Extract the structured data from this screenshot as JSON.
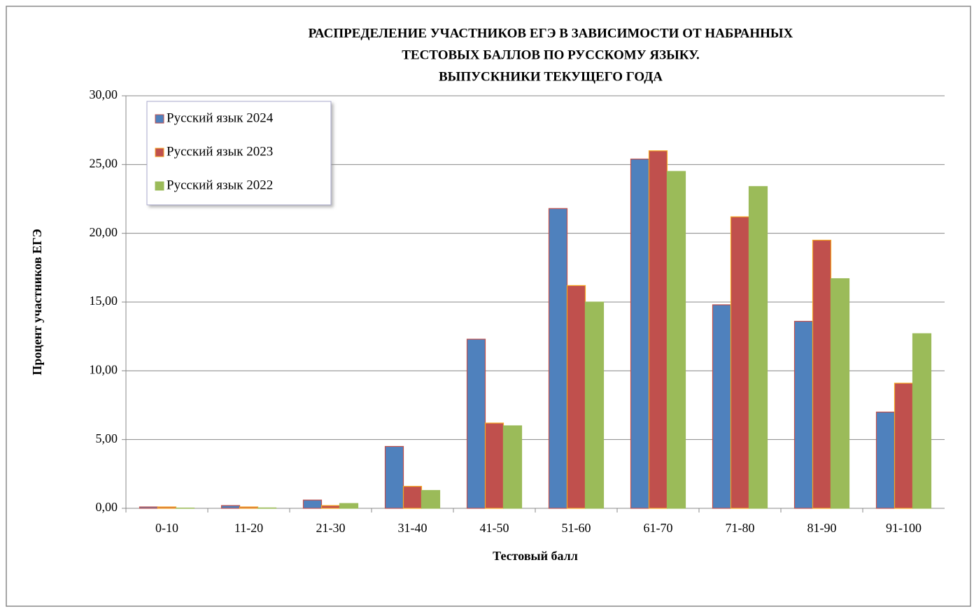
{
  "chart_data": {
    "type": "bar",
    "title": [
      "РАСПРЕДЕЛЕНИЕ  УЧАСТНИКОВ  ЕГЭ В ЗАВИСИМОСТИ  ОТ НАБРАННЫХ",
      "ТЕСТОВЫХ  БАЛЛОВ ПО РУССКОМУ  ЯЗЫКУ.",
      "ВЫПУСКНИКИ  ТЕКУЩЕГО  ГОДА"
    ],
    "x_label": "Тестовый  балл",
    "y_label": "Процент  участников  ЕГЭ",
    "categories": [
      "0-10",
      "11-20",
      "21-30",
      "31-40",
      "41-50",
      "51-60",
      "61-70",
      "71-80",
      "81-90",
      "91-100"
    ],
    "series": [
      {
        "name": "Русский язык 2024",
        "color": "#4f81bd",
        "edgecolor": "#c0504d",
        "values": [
          0.1,
          0.2,
          0.6,
          4.5,
          12.3,
          21.8,
          25.4,
          14.8,
          13.6,
          7.0
        ]
      },
      {
        "name": "Русский язык 2023",
        "color": "#c0504d",
        "edgecolor": "#f5a623",
        "values": [
          0.1,
          0.1,
          0.2,
          1.6,
          6.2,
          16.2,
          26.0,
          21.2,
          19.5,
          9.1
        ]
      },
      {
        "name": "Русский язык 2022",
        "color": "#9bbb59",
        "edgecolor": "#9bbb59",
        "values": [
          0.02,
          0.03,
          0.35,
          1.3,
          6.0,
          15.0,
          24.5,
          23.4,
          16.7,
          12.7
        ]
      }
    ],
    "ylim": [
      0,
      30
    ],
    "yticks": [
      {
        "value": 0,
        "label": "0,00"
      },
      {
        "value": 5,
        "label": "5,00"
      },
      {
        "value": 10,
        "label": "10,00"
      },
      {
        "value": 15,
        "label": "15,00"
      },
      {
        "value": 20,
        "label": "20,00"
      },
      {
        "value": 25,
        "label": "25,00"
      },
      {
        "value": 30,
        "label": "30,00"
      }
    ],
    "grid": true,
    "legend": "upper left"
  }
}
